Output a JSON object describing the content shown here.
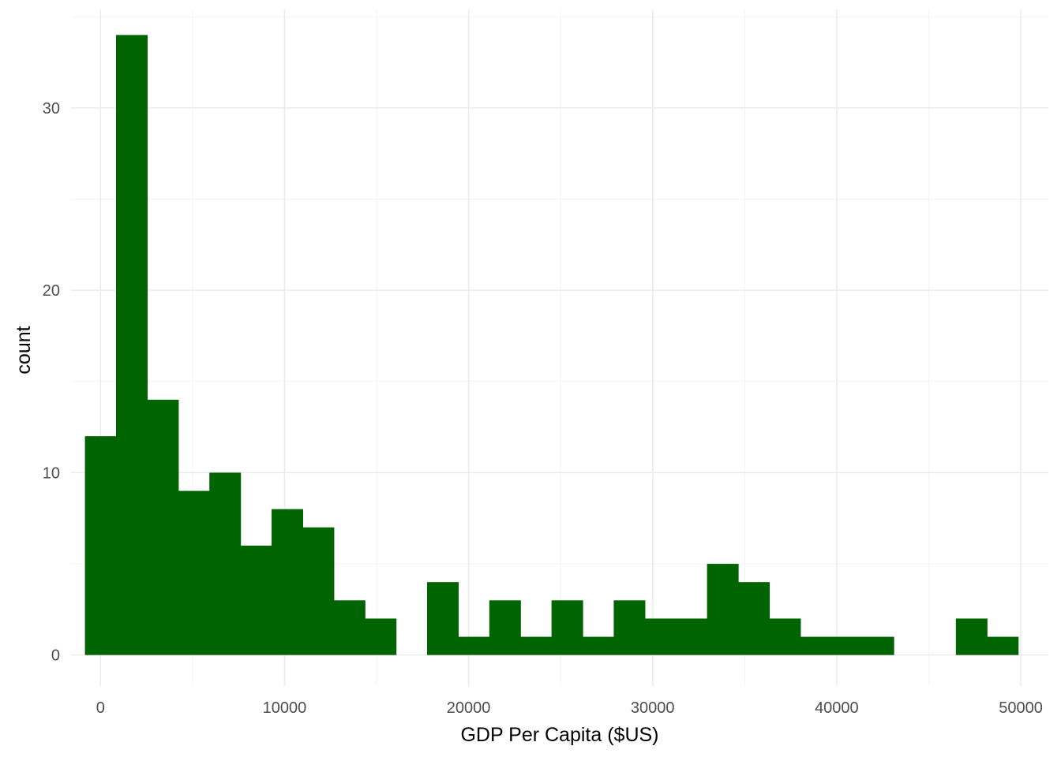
{
  "chart_data": {
    "type": "bar",
    "subtype": "histogram",
    "title": "",
    "xlabel": "GDP Per Capita ($US)",
    "ylabel": "count",
    "xlim": [
      -1600,
      51500
    ],
    "ylim": [
      -1.7,
      35.4
    ],
    "x_ticks": [
      0,
      10000,
      20000,
      30000,
      40000,
      50000
    ],
    "x_tick_labels": [
      "0",
      "10000",
      "20000",
      "30000",
      "40000",
      "50000"
    ],
    "y_ticks": [
      0,
      10,
      20,
      30
    ],
    "y_tick_labels": [
      "0",
      "10",
      "20",
      "30"
    ],
    "bin_width": 1690,
    "first_bin_start": -845,
    "counts": [
      12,
      34,
      14,
      9,
      10,
      6,
      8,
      7,
      3,
      2,
      0,
      4,
      1,
      3,
      1,
      3,
      1,
      3,
      2,
      2,
      5,
      4,
      2,
      1,
      1,
      1,
      0,
      0,
      2,
      1
    ],
    "bar_color": "#006400",
    "grid": true,
    "legend": "none"
  }
}
